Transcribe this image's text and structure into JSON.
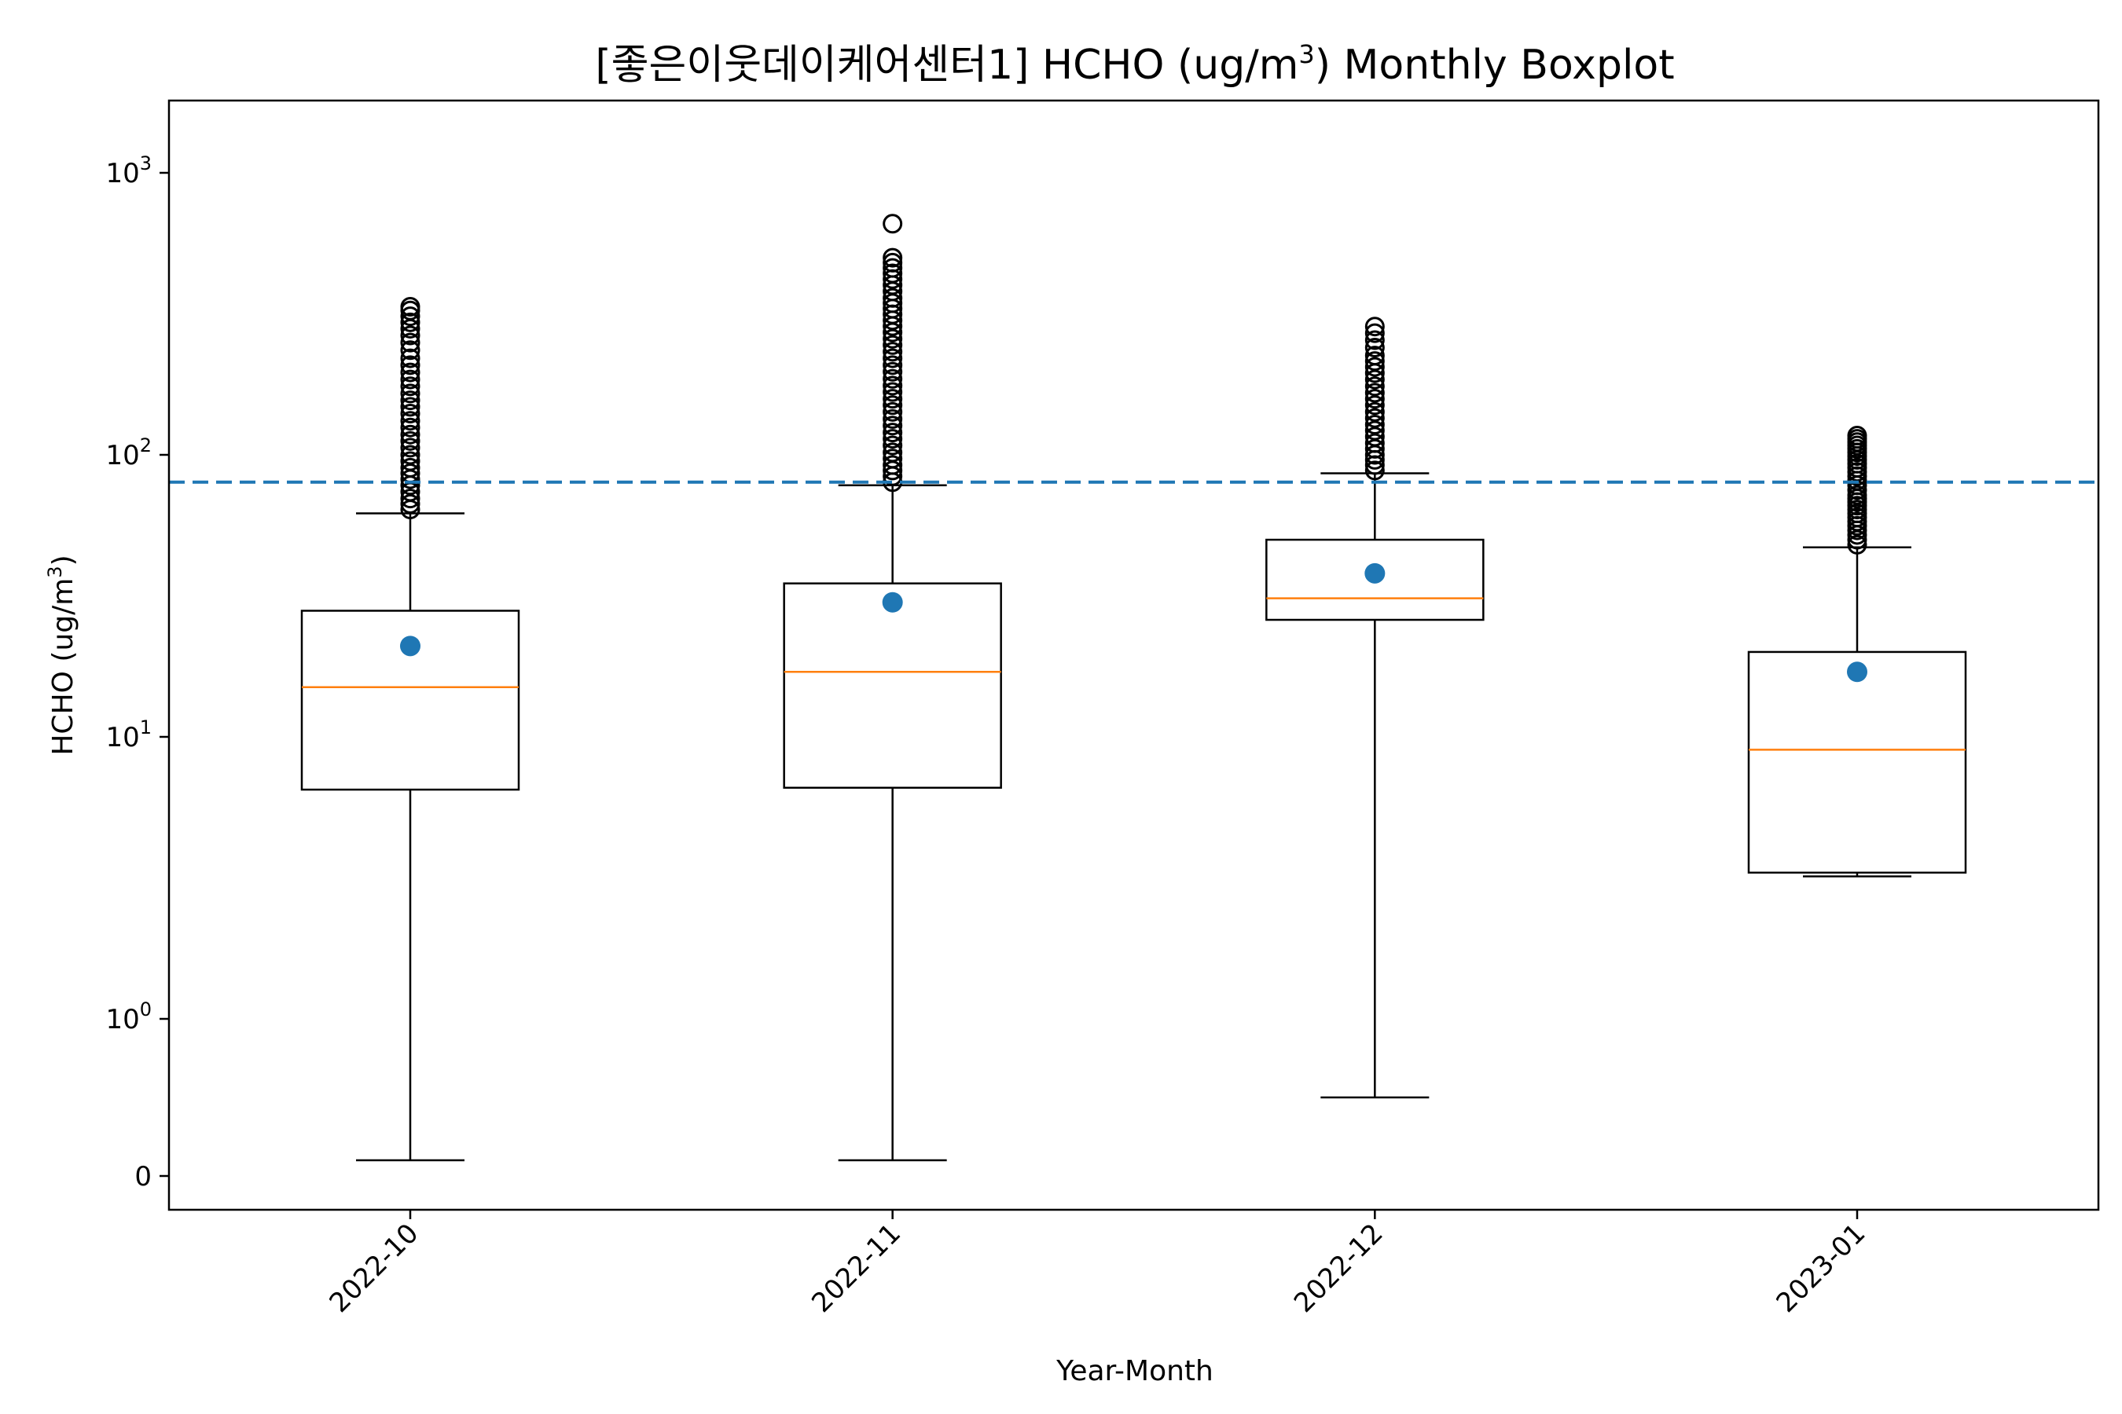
{
  "chart_data": {
    "type": "boxplot",
    "title_prefix": "[좋은이웃데이케어센터1] HCHO (ug/m",
    "title_sup": "3",
    "title_suffix": ") Monthly Boxplot",
    "xlabel": "Year-Month",
    "ylabel_prefix": "HCHO (ug/m",
    "ylabel_sup": "3",
    "ylabel_suffix": ")",
    "y_scale": "symlog",
    "y_ticks": [
      {
        "value": 0,
        "base": "0",
        "exp": ""
      },
      {
        "value": 1,
        "base": "10",
        "exp": "0"
      },
      {
        "value": 10,
        "base": "10",
        "exp": "1"
      },
      {
        "value": 100,
        "base": "10",
        "exp": "2"
      },
      {
        "value": 1000,
        "base": "10",
        "exp": "3"
      }
    ],
    "reference_line": {
      "value": 80,
      "style": "dashed",
      "color": "#1f77b4"
    },
    "median_color": "#ff7f0e",
    "mean_color": "#1f77b4",
    "categories": [
      "2022-10",
      "2022-11",
      "2022-12",
      "2023-01"
    ],
    "boxes": [
      {
        "label": "2022-10",
        "whisker_low": 0.1,
        "q1": 6.5,
        "median": 15,
        "q3": 28,
        "whisker_high": 62,
        "mean": 21,
        "fliers": [
          64,
          67,
          70,
          74,
          78,
          82,
          86,
          90,
          95,
          100,
          106,
          112,
          118,
          125,
          132,
          140,
          148,
          156,
          165,
          175,
          185,
          196,
          208,
          220,
          235,
          250,
          265,
          280,
          295,
          310,
          325,
          335
        ]
      },
      {
        "label": "2022-11",
        "whisker_low": 0.1,
        "q1": 6.6,
        "median": 17,
        "q3": 35,
        "whisker_high": 78,
        "mean": 30,
        "fliers": [
          80,
          84,
          88,
          92,
          97,
          102,
          108,
          114,
          120,
          127,
          134,
          142,
          150,
          158,
          167,
          176,
          186,
          197,
          208,
          220,
          232,
          245,
          258,
          272,
          286,
          300,
          315,
          330,
          345,
          360,
          380,
          400,
          420,
          440,
          460,
          480,
          500,
          660
        ]
      },
      {
        "label": "2022-12",
        "whisker_low": 0.5,
        "q1": 26,
        "median": 31,
        "q3": 50,
        "whisker_high": 86,
        "mean": 38,
        "fliers": [
          88,
          92,
          96,
          100,
          105,
          110,
          116,
          122,
          128,
          135,
          142,
          150,
          158,
          166,
          175,
          185,
          195,
          205,
          215,
          225,
          240,
          255,
          270,
          285
        ]
      },
      {
        "label": "2023-01",
        "whisker_low": 3.2,
        "q1": 3.3,
        "median": 9,
        "q3": 20,
        "whisker_high": 47,
        "mean": 17,
        "fliers": [
          48,
          50,
          52,
          54,
          56,
          58,
          60,
          62,
          64,
          66,
          68,
          70,
          72,
          75,
          78,
          81,
          84,
          87,
          90,
          93,
          96,
          99,
          102,
          105,
          108,
          111,
          114,
          117
        ]
      }
    ]
  }
}
